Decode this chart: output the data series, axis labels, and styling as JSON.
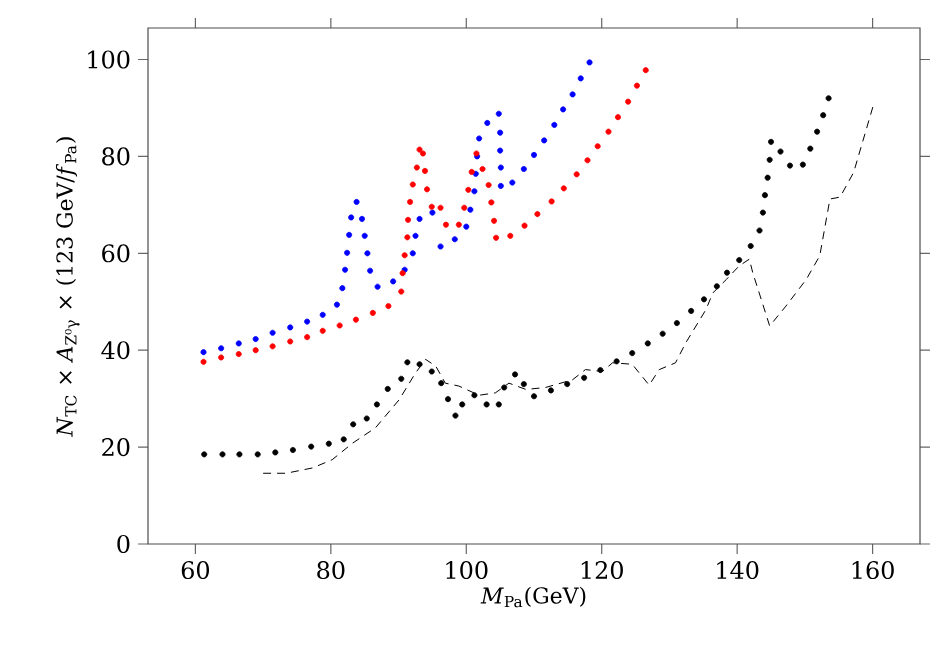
{
  "chart_data": {
    "type": "scatter",
    "xlabel": "*M*$_{Pa}$(GeV)",
    "ylabel": "*N*$_{TC}$ × *A*$_{Z⁰γ}$ × (123 GeV/*f*$_{Pa}$)",
    "xlim": [
      53,
      167
    ],
    "ylim": [
      0,
      106.5
    ],
    "xticks": [
      60,
      80,
      100,
      120,
      140,
      160
    ],
    "yticks": [
      0,
      20,
      40,
      60,
      80,
      100
    ],
    "grid": false,
    "series": [
      {
        "color": "#0000ff",
        "marker": "circle",
        "x": [
          61.2,
          63.8,
          66.4,
          68.9,
          71.4,
          74.0,
          76.5,
          78.8,
          80.9,
          81.7,
          82.1,
          82.4,
          82.7,
          83.0,
          83.8,
          84.6,
          85.0,
          85.4,
          85.8,
          86.9,
          89.2,
          90.9,
          92.1,
          92.5,
          93.1,
          95.0,
          96.2,
          98.3,
          100.0,
          100.6,
          101.2,
          101.4,
          101.6,
          101.9,
          103.1,
          104.8,
          105.0,
          105.0,
          105.1,
          105.1,
          106.8,
          108.5,
          110.0,
          111.5,
          113.0,
          114.3,
          115.7,
          116.9,
          118.2
        ],
        "values": [
          39.6,
          40.4,
          41.4,
          42.3,
          43.6,
          44.7,
          45.9,
          47.3,
          49.4,
          52.8,
          56.6,
          60.1,
          63.8,
          67.4,
          70.6,
          67.1,
          63.6,
          60.0,
          56.4,
          53.1,
          54.2,
          56.6,
          60.0,
          63.6,
          67.1,
          68.4,
          61.4,
          62.9,
          65.5,
          69.0,
          72.8,
          76.4,
          80.0,
          83.7,
          86.9,
          88.8,
          84.9,
          81.2,
          77.7,
          73.9,
          74.6,
          77.4,
          80.3,
          83.3,
          86.5,
          89.7,
          92.8,
          96.1,
          99.4
        ]
      },
      {
        "color": "#ff0000",
        "marker": "circle",
        "x": [
          61.2,
          63.8,
          66.4,
          68.9,
          71.4,
          74.0,
          76.5,
          78.8,
          81.3,
          83.7,
          86.2,
          88.5,
          90.4,
          90.6,
          90.9,
          91.3,
          91.4,
          91.7,
          92.1,
          92.7,
          93.1,
          93.6,
          93.9,
          94.2,
          94.9,
          96.2,
          97.0,
          98.9,
          99.7,
          100.3,
          100.8,
          101.5,
          102.4,
          103.3,
          103.7,
          104.1,
          104.4,
          106.5,
          108.6,
          110.5,
          112.6,
          114.4,
          116.3,
          117.9,
          119.4,
          121.0,
          122.4,
          123.9,
          125.2,
          126.5
        ],
        "values": [
          37.6,
          38.5,
          39.2,
          40.0,
          40.8,
          41.8,
          42.7,
          44.0,
          45.1,
          46.3,
          47.7,
          49.1,
          52.1,
          55.9,
          59.6,
          63.3,
          66.9,
          70.6,
          74.2,
          77.7,
          81.4,
          80.6,
          77.0,
          73.2,
          69.6,
          69.4,
          65.9,
          65.9,
          69.4,
          73.1,
          76.8,
          80.6,
          77.4,
          74.1,
          70.5,
          66.7,
          63.2,
          63.6,
          65.7,
          68.1,
          70.7,
          73.4,
          76.3,
          79.2,
          82.1,
          85.1,
          88.1,
          91.3,
          94.6,
          97.8
        ]
      },
      {
        "color": "#000000",
        "marker": "circle",
        "x": [
          61.3,
          64.0,
          66.5,
          69.2,
          71.8,
          74.4,
          77.1,
          79.7,
          81.9,
          83.3,
          85.3,
          86.8,
          88.4,
          90.4,
          91.3,
          93.1,
          94.9,
          96.3,
          97.3,
          98.4,
          99.4,
          101.2,
          103.0,
          104.8,
          105.6,
          107.2,
          108.5,
          110.0,
          112.5,
          114.9,
          117.4,
          119.8,
          122.2,
          124.5,
          126.8,
          129.0,
          131.1,
          133.2,
          135.1,
          137.0,
          138.5,
          140.3,
          142.0,
          143.3,
          143.8,
          144.1,
          144.5,
          144.8,
          145.0,
          146.4,
          147.8,
          149.7,
          150.8,
          151.8,
          152.7,
          153.5
        ],
        "values": [
          18.5,
          18.5,
          18.5,
          18.5,
          18.9,
          19.4,
          20.1,
          20.7,
          21.6,
          24.7,
          25.9,
          28.8,
          32.0,
          34.1,
          37.5,
          37.1,
          35.6,
          33.2,
          29.9,
          26.5,
          28.8,
          30.7,
          28.8,
          28.8,
          32.3,
          35.0,
          33.0,
          30.5,
          31.7,
          33.0,
          34.3,
          35.9,
          37.7,
          39.4,
          41.4,
          43.4,
          45.6,
          48.1,
          50.5,
          53.2,
          56.0,
          58.6,
          61.5,
          64.7,
          68.4,
          72.0,
          75.6,
          79.3,
          83.0,
          81.0,
          78.1,
          78.3,
          81.6,
          85.1,
          88.5,
          92.0
        ]
      },
      {
        "type": "line",
        "color": "#000000",
        "marker": "none",
        "line_style": "dashed",
        "x": [
          70.0,
          73.4,
          77.3,
          80.2,
          83.2,
          86.6,
          90.1,
          92.5,
          94.0,
          95.5,
          96.9,
          98.9,
          101.9,
          104.3,
          106.3,
          108.8,
          111.7,
          115.7,
          117.6,
          120.1,
          121.6,
          124.5,
          127.0,
          128.5,
          130.9,
          132.4,
          135.4,
          136.4,
          138.4,
          140.3,
          141.8,
          142.3,
          144.8,
          147.2,
          150.2,
          152.2,
          153.7,
          155.2,
          157.2,
          160.1
        ],
        "values": [
          14.6,
          14.6,
          15.7,
          17.4,
          20.8,
          24.0,
          29.8,
          35.3,
          38.1,
          36.7,
          33.2,
          32.6,
          30.7,
          31.2,
          33.2,
          31.9,
          32.3,
          33.9,
          36.0,
          35.6,
          37.4,
          37.1,
          32.8,
          36.0,
          37.4,
          41.5,
          48.4,
          51.8,
          54.6,
          57.4,
          58.8,
          56.0,
          45.0,
          49.1,
          54.6,
          59.5,
          71.2,
          71.6,
          76.7,
          90.5
        ]
      }
    ]
  }
}
